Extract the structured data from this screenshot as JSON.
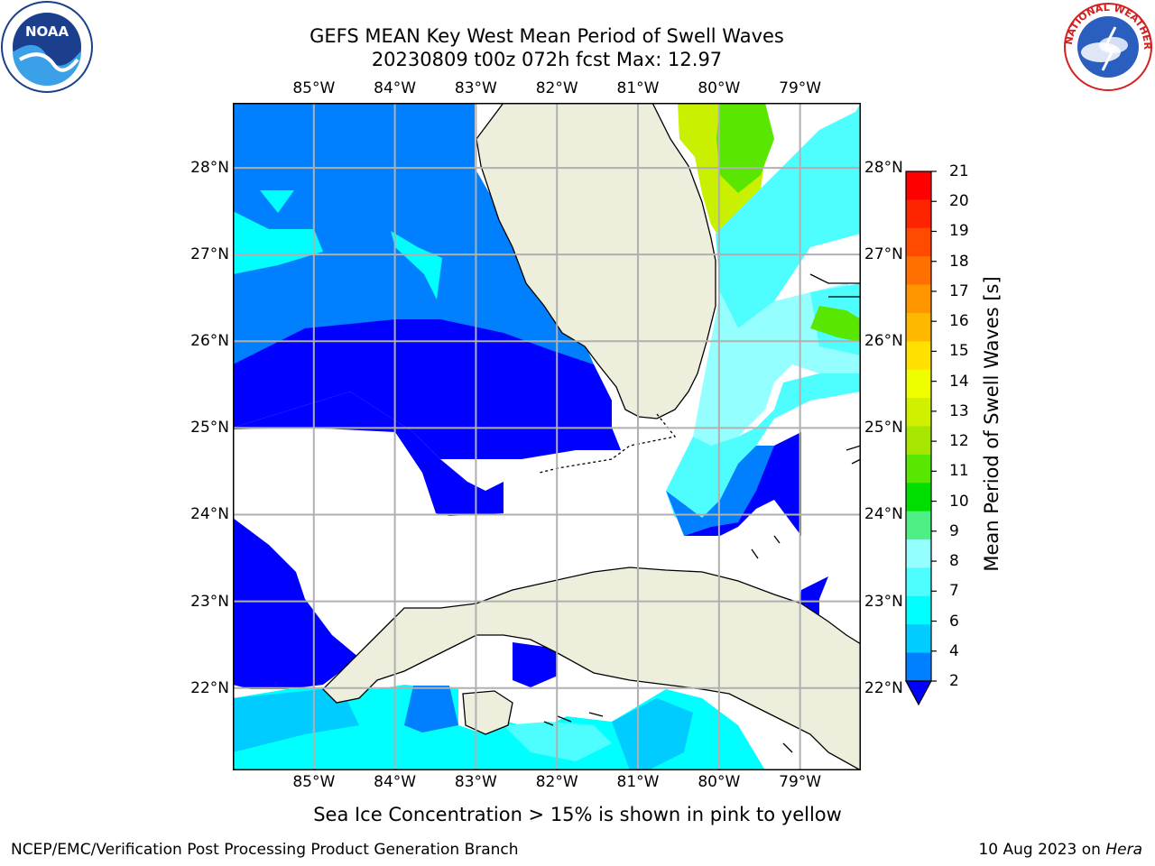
{
  "header": {
    "title_line1": "GEFS MEAN Key West Mean Period of Swell Waves",
    "title_line2": "20230809 t00z 072h fcst   Max: 12.97"
  },
  "logos": {
    "left": "noaa-logo",
    "left_text": "NOAA",
    "right": "nws-logo",
    "right_text": "NATIONAL WEATHER SERVICE"
  },
  "map": {
    "longitude_labels": [
      "85°W",
      "84°W",
      "83°W",
      "82°W",
      "81°W",
      "80°W",
      "79°W"
    ],
    "latitude_labels": [
      "28°N",
      "27°N",
      "26°N",
      "25°N",
      "24°N",
      "23°N",
      "22°N"
    ],
    "lon_range": [
      -86.0,
      -78.25
    ],
    "lat_range": [
      21.05,
      28.75
    ],
    "land_color": "#eeeedd",
    "grid_color": "#b0b0b0"
  },
  "colorbar": {
    "title": "Mean Period of Swell Waves [s]",
    "ticks": [
      "21",
      "20",
      "19",
      "18",
      "17",
      "16",
      "15",
      "14",
      "13",
      "12",
      "11",
      "10",
      "9",
      "8",
      "7",
      "6",
      "4",
      "2"
    ],
    "colors": [
      "#ff0000",
      "#ff2400",
      "#ff4a00",
      "#ff7000",
      "#ff9600",
      "#ffb800",
      "#ffe000",
      "#f0ff00",
      "#d0f000",
      "#a6e600",
      "#59e600",
      "#00dd00",
      "#4ef085",
      "#95ffff",
      "#4efdfd",
      "#00ffff",
      "#00ccff",
      "#0080ff",
      "#0000ff"
    ]
  },
  "notes": {
    "ice": "Sea Ice Concentration > 15% is shown in pink to yellow"
  },
  "footer": {
    "left": "NCEP/EMC/Verification Post Processing Product Generation Branch",
    "right_date": "10 Aug 2023 on ",
    "right_host": "Hera"
  }
}
